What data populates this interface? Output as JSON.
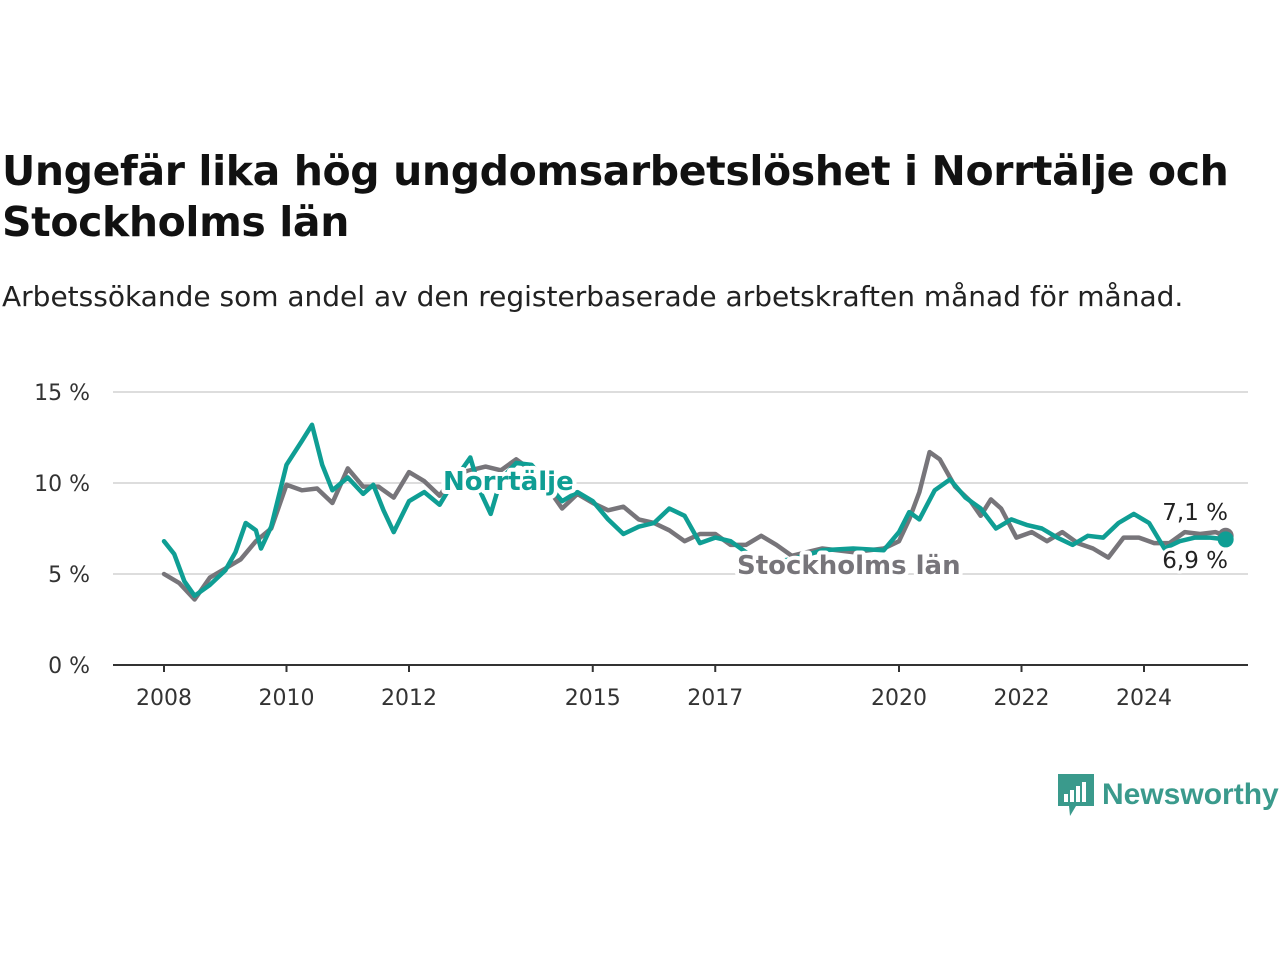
{
  "colors": {
    "norrtalje": "#0f9e94",
    "stockholm": "#77757a",
    "grid": "#dddddd",
    "axis": "#333333",
    "brand": "#3a9a8c"
  },
  "brand": {
    "name": "Newsworthy",
    "icon": "bar-chart-speech-bubble-icon"
  },
  "chart_data": {
    "type": "line",
    "title": "Ungefär lika hög ungdomsarbetslöshet i Norrtälje och Stockholms län",
    "subtitle": "Arbetssökande som andel av den registerbaserade arbetskraften månad för månad.",
    "xlabel": "",
    "ylabel": "",
    "ylim": [
      0,
      15
    ],
    "xlim": [
      "2008-01",
      "2025-09"
    ],
    "y_ticks": [
      0,
      5,
      10,
      15
    ],
    "y_tick_labels": [
      "0 %",
      "5 %",
      "10 %",
      "15 %"
    ],
    "x_ticks": [
      "2008-01",
      "2010-01",
      "2012-01",
      "2015-01",
      "2017-01",
      "2020-01",
      "2022-01",
      "2024-01"
    ],
    "x_tick_labels": [
      "2008",
      "2010",
      "2012",
      "2015",
      "2017",
      "2020",
      "2022",
      "2024"
    ],
    "grid": "horizontal",
    "legend": "direct labels on lines",
    "series": [
      {
        "name": "Norrtälje",
        "color": "#0f9e94",
        "end_label": "6,9 %",
        "points": [
          [
            "2008-01",
            6.8
          ],
          [
            "2008-03",
            6.1
          ],
          [
            "2008-05",
            4.6
          ],
          [
            "2008-07",
            3.8
          ],
          [
            "2008-10",
            4.4
          ],
          [
            "2009-01",
            5.2
          ],
          [
            "2009-03",
            6.2
          ],
          [
            "2009-05",
            7.8
          ],
          [
            "2009-07",
            7.4
          ],
          [
            "2009-08",
            6.4
          ],
          [
            "2009-10",
            7.6
          ],
          [
            "2010-01",
            11.0
          ],
          [
            "2010-04",
            12.3
          ],
          [
            "2010-06",
            13.2
          ],
          [
            "2010-08",
            11.0
          ],
          [
            "2010-10",
            9.6
          ],
          [
            "2011-01",
            10.3
          ],
          [
            "2011-04",
            9.4
          ],
          [
            "2011-06",
            9.9
          ],
          [
            "2011-08",
            8.5
          ],
          [
            "2011-10",
            7.3
          ],
          [
            "2012-01",
            9.0
          ],
          [
            "2012-04",
            9.5
          ],
          [
            "2012-07",
            8.8
          ],
          [
            "2012-10",
            10.2
          ],
          [
            "2013-01",
            11.4
          ],
          [
            "2013-03",
            9.5
          ],
          [
            "2013-05",
            8.3
          ],
          [
            "2013-07",
            10.2
          ],
          [
            "2013-10",
            11.1
          ],
          [
            "2014-01",
            11.0
          ],
          [
            "2014-04",
            10.0
          ],
          [
            "2014-07",
            9.0
          ],
          [
            "2014-10",
            9.5
          ],
          [
            "2015-01",
            9.0
          ],
          [
            "2015-04",
            8.0
          ],
          [
            "2015-07",
            7.2
          ],
          [
            "2015-10",
            7.6
          ],
          [
            "2016-01",
            7.8
          ],
          [
            "2016-04",
            8.6
          ],
          [
            "2016-07",
            8.2
          ],
          [
            "2016-10",
            6.7
          ],
          [
            "2017-01",
            7.0
          ],
          [
            "2017-04",
            6.8
          ],
          [
            "2017-07",
            6.2
          ],
          [
            "2017-10",
            5.6
          ],
          [
            "2018-04",
            5.8
          ],
          [
            "2018-10",
            6.3
          ],
          [
            "2019-04",
            6.4
          ],
          [
            "2019-10",
            6.3
          ],
          [
            "2020-01",
            7.3
          ],
          [
            "2020-03",
            8.4
          ],
          [
            "2020-05",
            8.0
          ],
          [
            "2020-08",
            9.6
          ],
          [
            "2020-11",
            10.2
          ],
          [
            "2021-02",
            9.2
          ],
          [
            "2021-05",
            8.6
          ],
          [
            "2021-08",
            7.5
          ],
          [
            "2021-11",
            8.0
          ],
          [
            "2022-02",
            7.7
          ],
          [
            "2022-05",
            7.5
          ],
          [
            "2022-08",
            7.0
          ],
          [
            "2022-11",
            6.6
          ],
          [
            "2023-02",
            7.1
          ],
          [
            "2023-05",
            7.0
          ],
          [
            "2023-08",
            7.8
          ],
          [
            "2023-11",
            8.3
          ],
          [
            "2024-02",
            7.8
          ],
          [
            "2024-05",
            6.4
          ],
          [
            "2024-08",
            6.8
          ],
          [
            "2024-11",
            7.0
          ],
          [
            "2025-02",
            7.0
          ],
          [
            "2025-05",
            6.9
          ]
        ]
      },
      {
        "name": "Stockholms län",
        "color": "#77757a",
        "end_label": "7,1 %",
        "points": [
          [
            "2008-01",
            5.0
          ],
          [
            "2008-04",
            4.5
          ],
          [
            "2008-07",
            3.6
          ],
          [
            "2008-10",
            4.8
          ],
          [
            "2009-01",
            5.3
          ],
          [
            "2009-04",
            5.8
          ],
          [
            "2009-07",
            6.8
          ],
          [
            "2009-10",
            7.5
          ],
          [
            "2010-01",
            9.9
          ],
          [
            "2010-04",
            9.6
          ],
          [
            "2010-07",
            9.7
          ],
          [
            "2010-10",
            8.9
          ],
          [
            "2011-01",
            10.8
          ],
          [
            "2011-04",
            9.8
          ],
          [
            "2011-07",
            9.8
          ],
          [
            "2011-10",
            9.2
          ],
          [
            "2012-01",
            10.6
          ],
          [
            "2012-04",
            10.1
          ],
          [
            "2012-07",
            9.3
          ],
          [
            "2012-10",
            10.5
          ],
          [
            "2013-01",
            10.7
          ],
          [
            "2013-04",
            10.9
          ],
          [
            "2013-07",
            10.7
          ],
          [
            "2013-10",
            11.3
          ],
          [
            "2014-01",
            10.7
          ],
          [
            "2014-04",
            9.8
          ],
          [
            "2014-07",
            8.6
          ],
          [
            "2014-10",
            9.4
          ],
          [
            "2015-01",
            8.9
          ],
          [
            "2015-04",
            8.5
          ],
          [
            "2015-07",
            8.7
          ],
          [
            "2015-10",
            8.0
          ],
          [
            "2016-01",
            7.8
          ],
          [
            "2016-04",
            7.4
          ],
          [
            "2016-07",
            6.8
          ],
          [
            "2016-10",
            7.2
          ],
          [
            "2017-01",
            7.2
          ],
          [
            "2017-04",
            6.6
          ],
          [
            "2017-07",
            6.6
          ],
          [
            "2017-10",
            7.1
          ],
          [
            "2018-01",
            6.6
          ],
          [
            "2018-04",
            6.0
          ],
          [
            "2018-10",
            6.4
          ],
          [
            "2019-04",
            6.2
          ],
          [
            "2019-10",
            6.4
          ],
          [
            "2020-01",
            6.8
          ],
          [
            "2020-03",
            8.0
          ],
          [
            "2020-05",
            9.5
          ],
          [
            "2020-07",
            11.7
          ],
          [
            "2020-09",
            11.3
          ],
          [
            "2020-12",
            9.8
          ],
          [
            "2021-03",
            9.0
          ],
          [
            "2021-05",
            8.2
          ],
          [
            "2021-07",
            9.1
          ],
          [
            "2021-09",
            8.6
          ],
          [
            "2021-12",
            7.0
          ],
          [
            "2022-03",
            7.3
          ],
          [
            "2022-06",
            6.8
          ],
          [
            "2022-09",
            7.3
          ],
          [
            "2022-12",
            6.7
          ],
          [
            "2023-03",
            6.4
          ],
          [
            "2023-06",
            5.9
          ],
          [
            "2023-09",
            7.0
          ],
          [
            "2023-12",
            7.0
          ],
          [
            "2024-03",
            6.7
          ],
          [
            "2024-06",
            6.7
          ],
          [
            "2024-09",
            7.3
          ],
          [
            "2024-12",
            7.2
          ],
          [
            "2025-03",
            7.3
          ],
          [
            "2025-05",
            7.1
          ]
        ]
      }
    ]
  }
}
